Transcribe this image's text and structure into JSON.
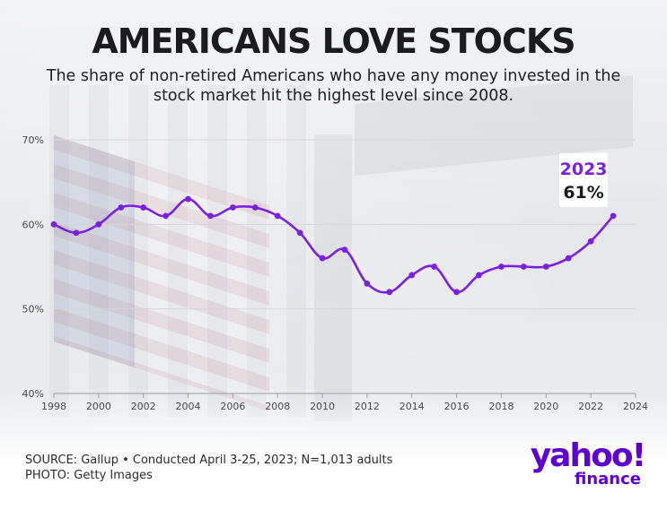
{
  "header": {
    "title": "AMERICANS LOVE STOCKS",
    "subtitle_line1": "The share of non-retired Americans who have any money invested in the",
    "subtitle_line2": "stock market hit the highest level since 2008."
  },
  "footer": {
    "source": "SOURCE: Gallup • Conducted April 3-25, 2023; N=1,013 adults",
    "photo": "PHOTO: Getty Images"
  },
  "logo": {
    "brand": "yahoo!",
    "sub": "finance"
  },
  "colors": {
    "line": "#7b1fe0",
    "accent": "#7b1fe0",
    "text": "#1c1c1e",
    "grid": "#d4d6da"
  },
  "chart_data": {
    "type": "line",
    "title": "AMERICANS LOVE STOCKS",
    "xlabel": "",
    "ylabel": "",
    "x": [
      1998,
      1999,
      2000,
      2001,
      2002,
      2003,
      2004,
      2005,
      2006,
      2007,
      2008,
      2009,
      2010,
      2011,
      2012,
      2013,
      2014,
      2015,
      2016,
      2017,
      2018,
      2019,
      2020,
      2021,
      2022,
      2023
    ],
    "series": [
      {
        "values": [
          60,
          59,
          60,
          62,
          62,
          61,
          63,
          61,
          62,
          62,
          61,
          59,
          56,
          57,
          53,
          52,
          54,
          55,
          52,
          54,
          55,
          55,
          55,
          56,
          58,
          61
        ]
      }
    ],
    "xlim": [
      1998,
      2024
    ],
    "ylim": [
      40,
      70
    ],
    "xticks": [
      1998,
      2000,
      2002,
      2004,
      2006,
      2008,
      2010,
      2012,
      2014,
      2016,
      2018,
      2020,
      2022,
      2024
    ],
    "yticks": [
      40,
      50,
      60,
      70
    ],
    "ytick_labels": [
      "40%",
      "50%",
      "60%",
      "70%"
    ],
    "grid": true,
    "smooth": true,
    "annotation": {
      "x": 2023,
      "label_year": "2023",
      "label_value": "61%"
    }
  }
}
